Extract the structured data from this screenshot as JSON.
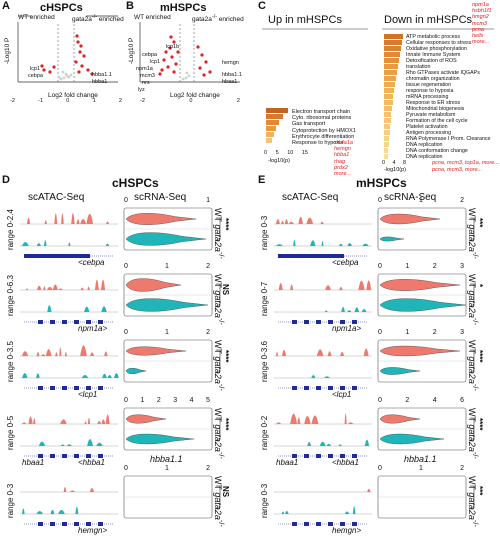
{
  "panels": {
    "A": {
      "letter": "A",
      "title": "cHSPCs",
      "left_label": "WT enriched",
      "right_label": "enriched",
      "right_gene": "gata2a",
      "ylabel": "-Log10 P",
      "xlabel": "Log2 fold change",
      "xticks": [
        "-2",
        "-1",
        "0",
        "1",
        "2"
      ],
      "genes": [
        "lcp1",
        "cebpa",
        "hbba1.1",
        "hbba1"
      ]
    },
    "B": {
      "letter": "B",
      "title": "mHSPCs",
      "left_label": "WT enriched",
      "right_label": "enriched",
      "right_gene": "gata2a",
      "ylabel": "-Log10 P",
      "xlabel": "Log2 fold change",
      "xticks": [
        "-2",
        "0",
        "2"
      ],
      "genes": [
        "cebpa",
        "lcp1",
        "npm1a",
        "mcm3",
        "nrs",
        "lyz",
        "lcp1b",
        "hemgn",
        "hbba1.1",
        "hbaa1"
      ]
    },
    "C": {
      "letter": "C",
      "up_title": "Up in mHSPCs",
      "down_title": "Down in mHSPCs",
      "up_terms": [
        "Electron transport chain",
        "Cyto. ribosomal proteins",
        "Gas transport",
        "Cytoprotection by HMOX1",
        "Erythrocyte differentiation",
        "Response to hypoxia"
      ],
      "up_axis": {
        "ticks": [
          "0",
          "5",
          "10",
          "15"
        ],
        "label": "-log10(p)"
      },
      "up_genes": [
        "slc4a1a",
        "hemgn",
        "hbba1",
        "rhag",
        "prdx2",
        "more..."
      ],
      "down_terms": [
        "ATP metabolic process",
        "Cellular responses to stress",
        "Oxidative phosphorylation",
        "Innate Immune System",
        "Detoxification of ROS",
        "translation",
        "Rho GTPases activate IQGAPs",
        "chromatin organization",
        "tissue regeneration",
        "response to hypoxia",
        "mRNA processing",
        "Response to ER stress",
        "Mitochondrial biogenesis",
        "Pyruvate metabolism",
        "Formation of the cell cycle",
        "Platelet activation",
        "Antigen processing",
        "RNA Polymerase I Prom. Clearance",
        "DNA replication",
        "DNA conformation change",
        "DNA replication"
      ],
      "down_axis": {
        "ticks": [
          "0",
          "4",
          "8"
        ],
        "label": "-log10(p)"
      },
      "down_genes": [
        "npm1a",
        "hsbh1f1",
        "hmgn2",
        "mcm3",
        "pcna",
        "hells",
        "more..."
      ],
      "down_footer1": "pcna, mcm3, top1a, more...",
      "down_footer2": "pcna, mcm3, more..."
    },
    "D": {
      "letter": "D",
      "title": "cHSPCs",
      "atac": "scATAC-Seq",
      "rna": "scRNA-Seq"
    },
    "E": {
      "letter": "E",
      "title": "mHSPCs",
      "atac": "scATAC-Seq",
      "rna": "scRNA-Seq"
    }
  },
  "geno": {
    "wt": "WT",
    "mut": "gata2a",
    "mut_sup": "-/-"
  },
  "tracksD": [
    {
      "range": "range 0-2.4",
      "gene": "<cebpa",
      "sig": "****",
      "axis": [
        "0",
        "1"
      ]
    },
    {
      "range": "range 0-6.3",
      "gene": "npm1a>",
      "sig": "NS",
      "axis": [
        "0",
        "1",
        "2"
      ]
    },
    {
      "range": "range 0-3.5",
      "gene": "<lcp1",
      "sig": "****",
      "axis": [
        "0",
        "1",
        "2"
      ]
    },
    {
      "range": "range 0-5",
      "gene": "<hbba1",
      "gene2": "hbaa1",
      "sig": "****",
      "axis": [
        "0",
        "1",
        "2",
        "3",
        "4",
        "5"
      ],
      "xlabel": "hbba1.1"
    },
    {
      "range": "range 0-3",
      "gene": "hemgn>",
      "sig": "NS",
      "axis": [
        "0",
        "1",
        "2"
      ]
    }
  ],
  "tracksE": [
    {
      "range": "range 0-3",
      "gene": "<cebpa",
      "sig": "***",
      "axis": [
        "0",
        "1",
        "2"
      ]
    },
    {
      "range": "range 0-7",
      "gene": "npm1a>",
      "sig": "*",
      "axis": [
        "0",
        "1",
        "2",
        "3"
      ]
    },
    {
      "range": "range 0-3.6",
      "gene": "<lcp1",
      "sig": "****",
      "axis": [
        "0",
        "1",
        "2",
        "3"
      ]
    },
    {
      "range": "range 0-2",
      "gene": "<hbba1",
      "gene2": "hbaa1",
      "sig": "****",
      "axis": [
        "0",
        "2",
        "4",
        "6"
      ],
      "xlabel": "hbba1.1"
    },
    {
      "range": "range 0-3",
      "gene": "hemgn>",
      "sig": "***",
      "axis": [
        "0",
        "1",
        "2"
      ]
    }
  ],
  "colors": {
    "wt": "#ee7a6e",
    "mut": "#20b6b9",
    "gene_model": "#1f2b9c",
    "accent": "#e0221f",
    "bar_orange": "#e89a3c"
  }
}
